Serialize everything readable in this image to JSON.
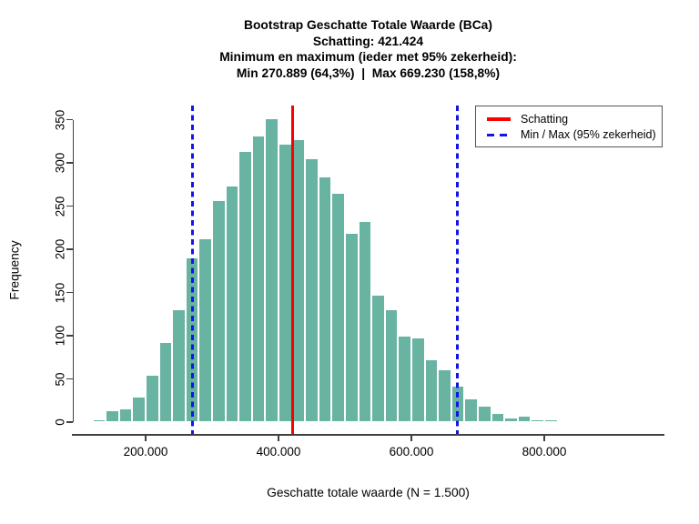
{
  "title": {
    "line1": "Bootstrap Geschatte Totale Waarde (BCa)",
    "line2": "Schatting: 421.424",
    "line3": "Minimum en maximum (ieder met 95% zekerheid):",
    "line4": "Min 270.889 (64,3%)  |  Max 669.230 (158,8%)"
  },
  "axes": {
    "xlabel": "Geschatte totale waarde (N = 1.500)",
    "ylabel": "Frequency"
  },
  "legend": {
    "items": [
      {
        "name": "schatting",
        "label": "Schatting",
        "color": "#fb0000",
        "line_style": "solid"
      },
      {
        "name": "min-max",
        "label": "Min / Max (95% zekerheid)",
        "color": "#1414e8",
        "line_style": "dashed"
      }
    ]
  },
  "chart_data": {
    "type": "bar",
    "subtype": "histogram",
    "title": "Bootstrap Geschatte Totale Waarde (BCa) / Schatting: 421.424",
    "xlabel": "Geschatte totale waarde (N = 1.500)",
    "ylabel": "Frequency",
    "bin_start": 120000,
    "bin_width": 20000,
    "counts": [
      3,
      14,
      16,
      29,
      55,
      93,
      131,
      191,
      213,
      257,
      274,
      314,
      332,
      352,
      322,
      327,
      305,
      284,
      265,
      219,
      233,
      147,
      131,
      100,
      98,
      73,
      61,
      42,
      27,
      19,
      11,
      5,
      7,
      3,
      3,
      2,
      2,
      1
    ],
    "bar_color": "#69b3a2",
    "bar_border_color": "#ffffff",
    "x_ticks": [
      {
        "value": 200000,
        "label": "200.000"
      },
      {
        "value": 400000,
        "label": "400.000"
      },
      {
        "value": 600000,
        "label": "600.000"
      },
      {
        "value": 800000,
        "label": "800.000"
      }
    ],
    "y_ticks": [
      {
        "value": 0,
        "label": "0"
      },
      {
        "value": 50,
        "label": "50"
      },
      {
        "value": 100,
        "label": "100"
      },
      {
        "value": 150,
        "label": "150"
      },
      {
        "value": 200,
        "label": "200"
      },
      {
        "value": 250,
        "label": "250"
      },
      {
        "value": 300,
        "label": "300"
      },
      {
        "value": 350,
        "label": "350"
      }
    ],
    "xlim": [
      90000,
      980000
    ],
    "ylim": [
      0,
      352
    ],
    "grid": false,
    "legend_position": "top-right",
    "vlines": [
      {
        "name": "schatting-line",
        "value": 421424,
        "label": "Schatting",
        "color": "#fb0000",
        "style": "solid",
        "width": 3.5
      },
      {
        "name": "min-line",
        "value": 270889,
        "label": "Min (95% zekerheid)",
        "color": "#1414e8",
        "style": "dashed",
        "width": 3
      },
      {
        "name": "max-line",
        "value": 669230,
        "label": "Max (95% zekerheid)",
        "color": "#1414e8",
        "style": "dashed",
        "width": 3
      }
    ]
  }
}
